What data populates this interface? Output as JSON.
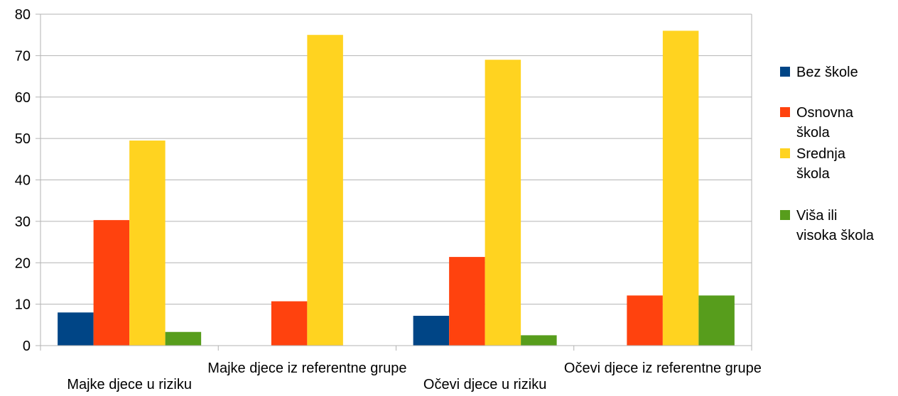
{
  "chart_data": {
    "type": "bar",
    "categories": [
      "Majke djece u riziku",
      "Majke djece iz referentne grupe",
      "Očevi djece u riziku",
      "Očevi djece iz referentne grupe"
    ],
    "series": [
      {
        "name": "Bez škole",
        "legend_lines": [
          "Bez škole"
        ],
        "color": "#004586",
        "values": [
          8,
          0,
          7.2,
          0
        ]
      },
      {
        "name": "Osnovna škola",
        "legend_lines": [
          "Osnovna",
          "škola"
        ],
        "color": "#ff420e",
        "values": [
          30.3,
          10.7,
          21.4,
          12.1
        ]
      },
      {
        "name": "Srednja škola",
        "legend_lines": [
          "Srednja",
          "škola"
        ],
        "color": "#ffd320",
        "values": [
          49.5,
          75,
          69,
          76
        ]
      },
      {
        "name": "Viša ili visoka škola",
        "legend_lines": [
          "Viša ili",
          "visoka škola"
        ],
        "color": "#579d1c",
        "values": [
          3.3,
          0,
          2.5,
          12.1
        ]
      }
    ],
    "ylim": [
      0,
      80
    ],
    "yticks": [
      0,
      10,
      20,
      30,
      40,
      50,
      60,
      70,
      80
    ],
    "grid": true,
    "legend": "right",
    "title": "",
    "xlabel": "",
    "ylabel": ""
  }
}
